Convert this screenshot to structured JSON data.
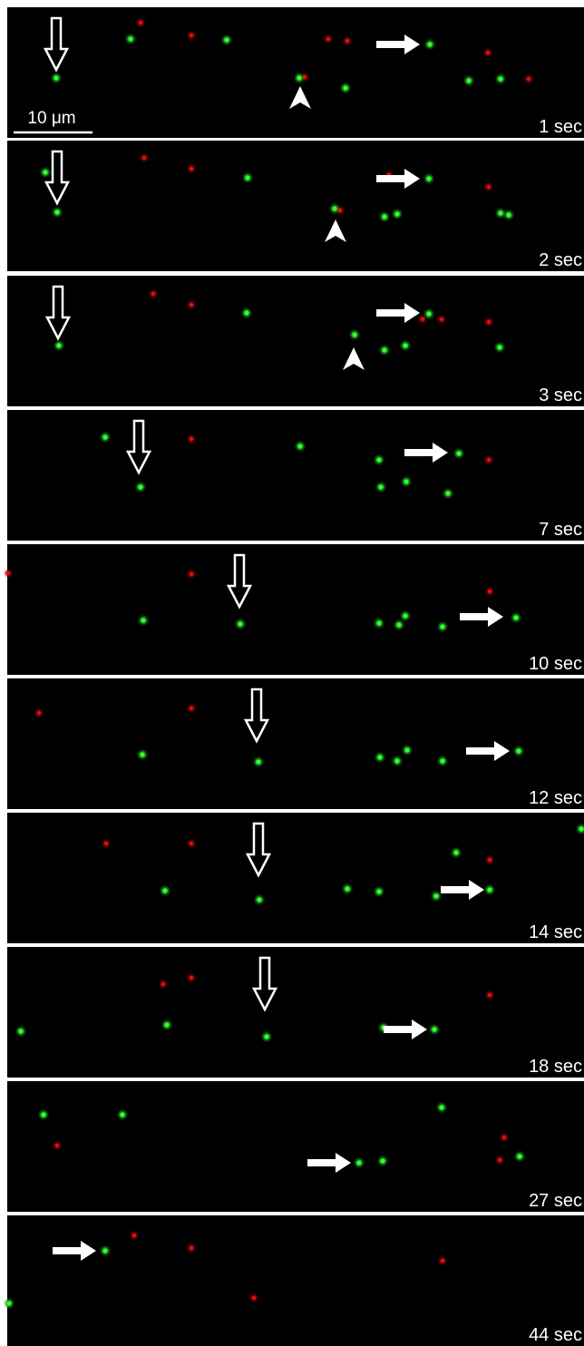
{
  "scale_bar": {
    "label": "10 μm"
  },
  "panels": [
    {
      "time": "1 sec"
    },
    {
      "time": "2 sec"
    },
    {
      "time": "3 sec"
    },
    {
      "time": "7 sec"
    },
    {
      "time": "10 sec"
    },
    {
      "time": "12 sec"
    },
    {
      "time": "14 sec"
    },
    {
      "time": "18 sec"
    },
    {
      "time": "27 sec"
    },
    {
      "time": "44 sec"
    }
  ]
}
